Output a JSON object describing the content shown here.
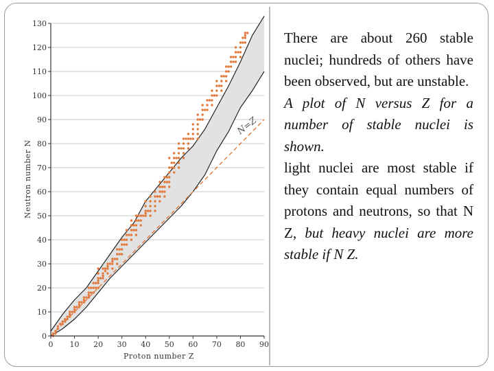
{
  "text_panel": {
    "p1": "There are about 260 stable nuclei; hundreds of others have been observed, but are unstable.",
    "p2": "A plot of N versus Z for a number of stable nuclei is shown.",
    "p3_a": "light nuclei are most stable if they contain equal numbers of protons and neutrons, so that N  Z, ",
    "p3_b": "but heavy nuclei are more stable if N  Z."
  },
  "chart_data": {
    "type": "scatter",
    "xlabel": "Proton number  Z",
    "ylabel": "Neutron number  N",
    "xlim": [
      0,
      90
    ],
    "ylim": [
      0,
      130
    ],
    "xticks": [
      "0",
      "10",
      "20",
      "30",
      "40",
      "50",
      "60",
      "70",
      "80",
      "90"
    ],
    "yticks": [
      "0",
      "10",
      "20",
      "30",
      "40",
      "50",
      "60",
      "70",
      "80",
      "90",
      "100",
      "110",
      "120",
      "130"
    ],
    "grid": "horizontal",
    "reference_line": {
      "label": "N=Z",
      "points": [
        [
          0,
          0
        ],
        [
          90,
          90
        ]
      ]
    },
    "stability_band": {
      "upper": [
        [
          0,
          2
        ],
        [
          5,
          9
        ],
        [
          10,
          15
        ],
        [
          15,
          20
        ],
        [
          20,
          27
        ],
        [
          25,
          34
        ],
        [
          30,
          41
        ],
        [
          35,
          47
        ],
        [
          40,
          56
        ],
        [
          45,
          62
        ],
        [
          50,
          68
        ],
        [
          55,
          74
        ],
        [
          60,
          79
        ],
        [
          65,
          86
        ],
        [
          70,
          95
        ],
        [
          75,
          104
        ],
        [
          80,
          114
        ],
        [
          85,
          125
        ],
        [
          90,
          133
        ]
      ],
      "lower": [
        [
          0,
          0
        ],
        [
          5,
          3
        ],
        [
          10,
          7
        ],
        [
          15,
          12
        ],
        [
          20,
          18
        ],
        [
          25,
          24
        ],
        [
          30,
          29
        ],
        [
          35,
          34
        ],
        [
          40,
          39
        ],
        [
          45,
          44
        ],
        [
          50,
          49
        ],
        [
          55,
          54
        ],
        [
          60,
          60
        ],
        [
          65,
          67
        ],
        [
          70,
          77
        ],
        [
          75,
          85
        ],
        [
          80,
          95
        ],
        [
          85,
          102
        ],
        [
          90,
          110
        ]
      ]
    },
    "series": [
      {
        "color": "#e07a3c",
        "points": [
          [
            1,
            0
          ],
          [
            1,
            1
          ],
          [
            2,
            1
          ],
          [
            2,
            2
          ],
          [
            3,
            3
          ],
          [
            3,
            4
          ],
          [
            4,
            5
          ],
          [
            5,
            5
          ],
          [
            5,
            6
          ],
          [
            6,
            6
          ],
          [
            6,
            7
          ],
          [
            7,
            7
          ],
          [
            7,
            8
          ],
          [
            8,
            8
          ],
          [
            8,
            9
          ],
          [
            8,
            10
          ],
          [
            9,
            10
          ],
          [
            10,
            10
          ],
          [
            10,
            11
          ],
          [
            10,
            12
          ],
          [
            11,
            12
          ],
          [
            12,
            12
          ],
          [
            12,
            13
          ],
          [
            12,
            14
          ],
          [
            13,
            14
          ],
          [
            14,
            14
          ],
          [
            14,
            15
          ],
          [
            14,
            16
          ],
          [
            15,
            16
          ],
          [
            16,
            16
          ],
          [
            16,
            17
          ],
          [
            16,
            18
          ],
          [
            16,
            20
          ],
          [
            17,
            18
          ],
          [
            17,
            20
          ],
          [
            18,
            18
          ],
          [
            18,
            20
          ],
          [
            18,
            22
          ],
          [
            19,
            20
          ],
          [
            19,
            22
          ],
          [
            20,
            20
          ],
          [
            20,
            22
          ],
          [
            20,
            23
          ],
          [
            20,
            24
          ],
          [
            20,
            26
          ],
          [
            20,
            28
          ],
          [
            21,
            24
          ],
          [
            22,
            24
          ],
          [
            22,
            25
          ],
          [
            22,
            26
          ],
          [
            22,
            28
          ],
          [
            23,
            27
          ],
          [
            23,
            28
          ],
          [
            24,
            26
          ],
          [
            24,
            28
          ],
          [
            24,
            29
          ],
          [
            24,
            30
          ],
          [
            25,
            30
          ],
          [
            26,
            28
          ],
          [
            26,
            30
          ],
          [
            26,
            31
          ],
          [
            26,
            32
          ],
          [
            27,
            32
          ],
          [
            28,
            30
          ],
          [
            28,
            32
          ],
          [
            28,
            34
          ],
          [
            28,
            36
          ],
          [
            29,
            34
          ],
          [
            29,
            36
          ],
          [
            30,
            34
          ],
          [
            30,
            36
          ],
          [
            30,
            38
          ],
          [
            30,
            40
          ],
          [
            31,
            38
          ],
          [
            31,
            40
          ],
          [
            32,
            38
          ],
          [
            32,
            40
          ],
          [
            32,
            42
          ],
          [
            32,
            44
          ],
          [
            33,
            42
          ],
          [
            34,
            40
          ],
          [
            34,
            42
          ],
          [
            34,
            44
          ],
          [
            34,
            46
          ],
          [
            34,
            48
          ],
          [
            35,
            44
          ],
          [
            35,
            46
          ],
          [
            36,
            42
          ],
          [
            36,
            44
          ],
          [
            36,
            46
          ],
          [
            36,
            48
          ],
          [
            36,
            50
          ],
          [
            37,
            48
          ],
          [
            37,
            50
          ],
          [
            38,
            46
          ],
          [
            38,
            48
          ],
          [
            38,
            50
          ],
          [
            39,
            50
          ],
          [
            40,
            50
          ],
          [
            40,
            51
          ],
          [
            40,
            52
          ],
          [
            40,
            54
          ],
          [
            40,
            56
          ],
          [
            41,
            52
          ],
          [
            42,
            50
          ],
          [
            42,
            52
          ],
          [
            42,
            54
          ],
          [
            42,
            56
          ],
          [
            42,
            58
          ],
          [
            44,
            52
          ],
          [
            44,
            54
          ],
          [
            44,
            56
          ],
          [
            44,
            58
          ],
          [
            44,
            60
          ],
          [
            45,
            58
          ],
          [
            46,
            56
          ],
          [
            46,
            58
          ],
          [
            46,
            60
          ],
          [
            46,
            62
          ],
          [
            46,
            64
          ],
          [
            47,
            60
          ],
          [
            47,
            62
          ],
          [
            48,
            58
          ],
          [
            48,
            60
          ],
          [
            48,
            62
          ],
          [
            48,
            64
          ],
          [
            48,
            66
          ],
          [
            49,
            64
          ],
          [
            49,
            66
          ],
          [
            50,
            62
          ],
          [
            50,
            64
          ],
          [
            50,
            66
          ],
          [
            50,
            68
          ],
          [
            50,
            70
          ],
          [
            50,
            74
          ],
          [
            51,
            70
          ],
          [
            51,
            72
          ],
          [
            52,
            68
          ],
          [
            52,
            70
          ],
          [
            52,
            72
          ],
          [
            52,
            74
          ],
          [
            52,
            76
          ],
          [
            53,
            74
          ],
          [
            54,
            70
          ],
          [
            54,
            72
          ],
          [
            54,
            74
          ],
          [
            54,
            76
          ],
          [
            54,
            78
          ],
          [
            54,
            80
          ],
          [
            55,
            78
          ],
          [
            56,
            74
          ],
          [
            56,
            76
          ],
          [
            56,
            78
          ],
          [
            56,
            80
          ],
          [
            56,
            82
          ],
          [
            57,
            82
          ],
          [
            58,
            78
          ],
          [
            58,
            80
          ],
          [
            58,
            82
          ],
          [
            58,
            84
          ],
          [
            59,
            82
          ],
          [
            60,
            82
          ],
          [
            60,
            84
          ],
          [
            60,
            86
          ],
          [
            60,
            88
          ],
          [
            62,
            82
          ],
          [
            62,
            84
          ],
          [
            62,
            86
          ],
          [
            62,
            88
          ],
          [
            62,
            90
          ],
          [
            62,
            92
          ],
          [
            63,
            90
          ],
          [
            64,
            90
          ],
          [
            64,
            92
          ],
          [
            64,
            94
          ],
          [
            64,
            96
          ],
          [
            65,
            94
          ],
          [
            66,
            94
          ],
          [
            66,
            96
          ],
          [
            66,
            98
          ],
          [
            67,
            98
          ],
          [
            68,
            96
          ],
          [
            68,
            98
          ],
          [
            68,
            100
          ],
          [
            68,
            102
          ],
          [
            69,
            100
          ],
          [
            70,
            100
          ],
          [
            70,
            102
          ],
          [
            70,
            104
          ],
          [
            70,
            106
          ],
          [
            71,
            104
          ],
          [
            72,
            102
          ],
          [
            72,
            104
          ],
          [
            72,
            106
          ],
          [
            72,
            108
          ],
          [
            73,
            108
          ],
          [
            74,
            106
          ],
          [
            74,
            108
          ],
          [
            74,
            110
          ],
          [
            74,
            112
          ],
          [
            75,
            110
          ],
          [
            75,
            112
          ],
          [
            76,
            112
          ],
          [
            76,
            114
          ],
          [
            76,
            116
          ],
          [
            77,
            114
          ],
          [
            77,
            116
          ],
          [
            78,
            114
          ],
          [
            78,
            116
          ],
          [
            78,
            118
          ],
          [
            78,
            120
          ],
          [
            79,
            118
          ],
          [
            80,
            116
          ],
          [
            80,
            118
          ],
          [
            80,
            120
          ],
          [
            80,
            122
          ],
          [
            81,
            122
          ],
          [
            81,
            124
          ],
          [
            82,
            122
          ],
          [
            82,
            124
          ],
          [
            82,
            125
          ],
          [
            82,
            126
          ],
          [
            83,
            126
          ]
        ]
      }
    ]
  }
}
